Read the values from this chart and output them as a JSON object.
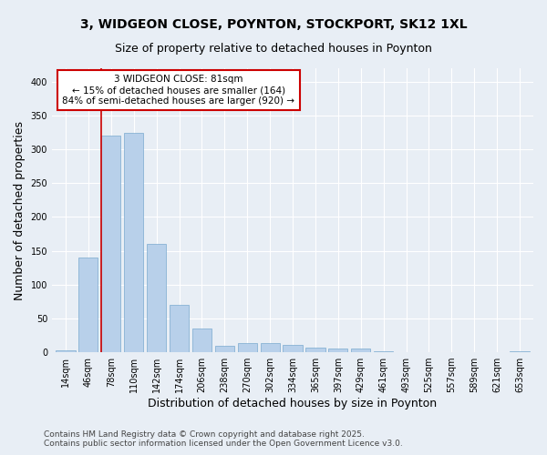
{
  "title": "3, WIDGEON CLOSE, POYNTON, STOCKPORT, SK12 1XL",
  "subtitle": "Size of property relative to detached houses in Poynton",
  "xlabel": "Distribution of detached houses by size in Poynton",
  "ylabel": "Number of detached properties",
  "categories": [
    "14sqm",
    "46sqm",
    "78sqm",
    "110sqm",
    "142sqm",
    "174sqm",
    "206sqm",
    "238sqm",
    "270sqm",
    "302sqm",
    "334sqm",
    "365sqm",
    "397sqm",
    "429sqm",
    "461sqm",
    "493sqm",
    "525sqm",
    "557sqm",
    "589sqm",
    "621sqm",
    "653sqm"
  ],
  "values": [
    3,
    140,
    320,
    325,
    160,
    70,
    35,
    10,
    14,
    13,
    11,
    7,
    5,
    5,
    1,
    0,
    0,
    0,
    0,
    0,
    2
  ],
  "bar_color": "#b8d0ea",
  "bar_edge_color": "#7aaacf",
  "background_color": "#e8eef5",
  "grid_color": "#ffffff",
  "red_line_index": 2,
  "annotation_title": "3 WIDGEON CLOSE: 81sqm",
  "annotation_line1": "← 15% of detached houses are smaller (164)",
  "annotation_line2": "84% of semi-detached houses are larger (920) →",
  "annotation_box_color": "#ffffff",
  "annotation_border_color": "#cc0000",
  "red_line_color": "#cc0000",
  "footnote1": "Contains HM Land Registry data © Crown copyright and database right 2025.",
  "footnote2": "Contains public sector information licensed under the Open Government Licence v3.0.",
  "ylim": [
    0,
    420
  ],
  "title_fontsize": 10,
  "subtitle_fontsize": 9,
  "axis_label_fontsize": 9,
  "tick_fontsize": 7,
  "annotation_fontsize": 7.5,
  "footnote_fontsize": 6.5
}
